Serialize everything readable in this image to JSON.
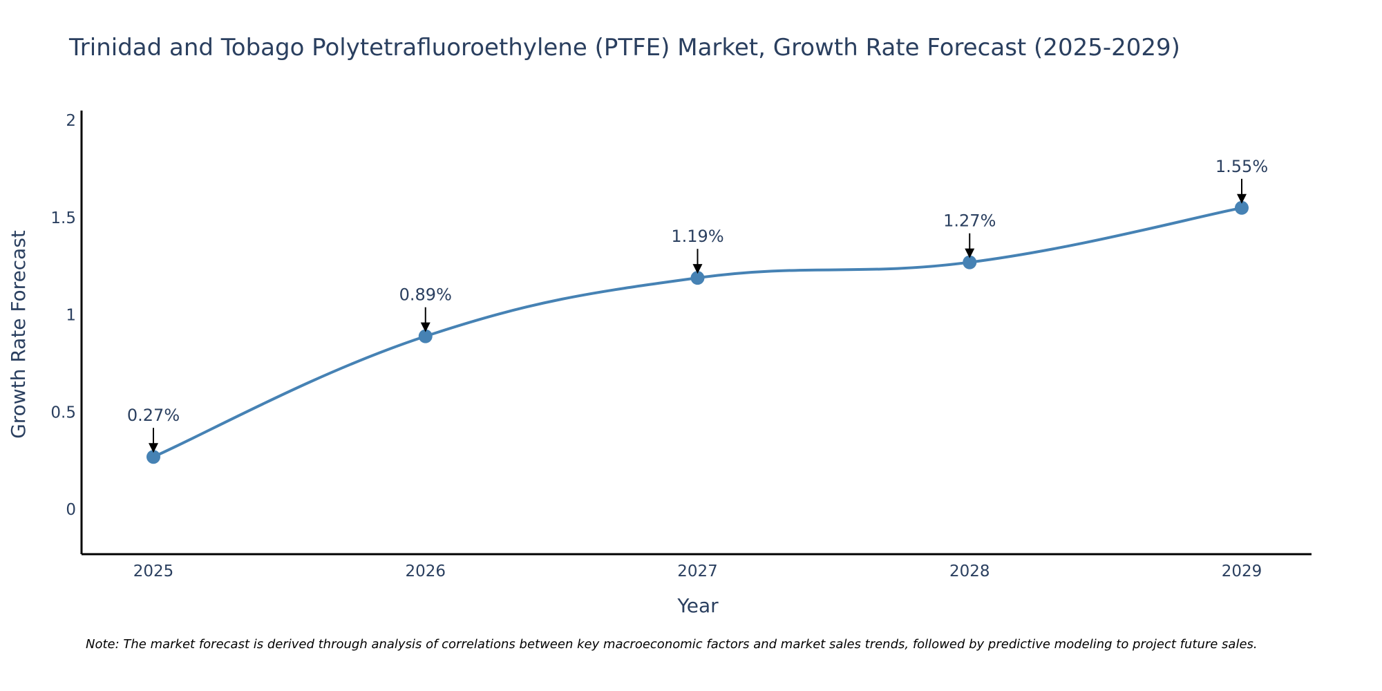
{
  "chart_data": {
    "type": "line",
    "title": "Trinidad and Tobago Polytetrafluoroethylene (PTFE) Market, Growth Rate Forecast (2025-2029)",
    "xlabel": "Year",
    "ylabel": "Growth Rate Forecast",
    "categories": [
      "2025",
      "2026",
      "2027",
      "2028",
      "2029"
    ],
    "values": [
      0.27,
      0.89,
      1.19,
      1.27,
      1.55
    ],
    "data_labels": [
      "0.27%",
      "0.89%",
      "1.19%",
      "1.27%",
      "1.55%"
    ],
    "ylim": [
      -0.23,
      2.05
    ],
    "yticks": [
      0,
      0.5,
      1,
      1.5,
      2
    ],
    "ytick_labels": [
      "0",
      "0.5",
      "1",
      "1.5",
      "2"
    ],
    "grid": false,
    "line_color": "#4682b4",
    "marker_color": "#4682b4",
    "note": "Note: The market forecast is derived through analysis of correlations between key macroeconomic factors and market sales trends, followed by predictive modeling to project future sales."
  }
}
